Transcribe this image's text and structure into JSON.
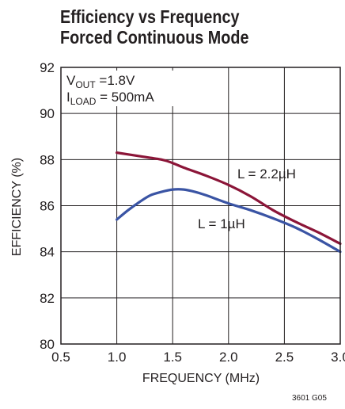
{
  "chart_data": {
    "type": "line",
    "title": "Efficiency vs Frequency",
    "subtitle": "Forced Continuous Mode",
    "xlabel": "FREQUENCY (MHz)",
    "ylabel": "EFFICIENCY (%)",
    "xlim": [
      0.5,
      3.0
    ],
    "ylim": [
      80,
      92
    ],
    "x_ticks": [
      "0.5",
      "1.0",
      "1.5",
      "2.0",
      "2.5",
      "3.0"
    ],
    "y_ticks": [
      "80",
      "82",
      "84",
      "86",
      "88",
      "90",
      "92"
    ],
    "grid": true,
    "conditions": {
      "vout_sym": "V",
      "vout_sub": "OUT",
      "vout_val": " =1.8V",
      "iload_sym": "I",
      "iload_sub": "LOAD",
      "iload_val": " = 500mA"
    },
    "series": [
      {
        "name": "L = 2.2µH",
        "color": "#8b1538",
        "x": [
          1.0,
          1.2,
          1.4,
          1.5,
          1.6,
          1.8,
          2.0,
          2.2,
          2.4,
          2.6,
          2.8,
          3.0
        ],
        "y": [
          88.3,
          88.15,
          88.0,
          87.85,
          87.65,
          87.3,
          86.9,
          86.4,
          85.8,
          85.3,
          84.85,
          84.35
        ]
      },
      {
        "name": "L = 1µH",
        "color": "#3a54a4",
        "x": [
          1.0,
          1.1,
          1.2,
          1.3,
          1.4,
          1.5,
          1.6,
          1.7,
          1.8,
          2.0,
          2.2,
          2.4,
          2.6,
          2.8,
          3.0
        ],
        "y": [
          85.4,
          85.8,
          86.15,
          86.45,
          86.6,
          86.7,
          86.7,
          86.6,
          86.45,
          86.1,
          85.8,
          85.45,
          85.05,
          84.55,
          84.0
        ]
      }
    ]
  },
  "figure_code": "3601 G05"
}
